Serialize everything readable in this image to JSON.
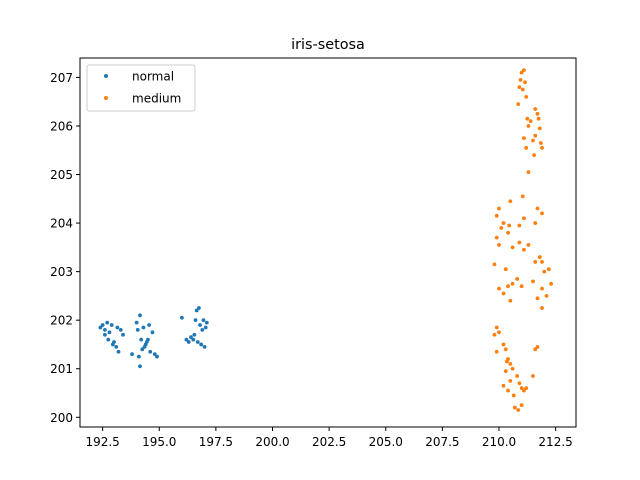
{
  "chart_data": {
    "type": "scatter",
    "title": "iris-setosa",
    "xlabel": "",
    "ylabel": "",
    "xlim": [
      191.5,
      213.4
    ],
    "ylim": [
      199.8,
      207.4
    ],
    "xticks": [
      192.5,
      195.0,
      197.5,
      200.0,
      202.5,
      205.0,
      207.5,
      210.0,
      212.5
    ],
    "xtick_labels": [
      "192.5",
      "195.0",
      "197.5",
      "200.0",
      "202.5",
      "205.0",
      "207.5",
      "210.0",
      "212.5"
    ],
    "yticks": [
      200,
      201,
      202,
      203,
      204,
      205,
      206,
      207
    ],
    "ytick_labels": [
      "200",
      "201",
      "202",
      "203",
      "204",
      "205",
      "206",
      "207"
    ],
    "grid": false,
    "legend_position": "top-left",
    "series": [
      {
        "name": "normal",
        "color": "#1f77b4",
        "points": [
          [
            192.4,
            201.85
          ],
          [
            192.5,
            201.9
          ],
          [
            192.6,
            201.8
          ],
          [
            192.7,
            201.95
          ],
          [
            192.6,
            201.7
          ],
          [
            192.8,
            201.75
          ],
          [
            192.9,
            201.9
          ],
          [
            192.75,
            201.6
          ],
          [
            193.0,
            201.55
          ],
          [
            193.1,
            201.45
          ],
          [
            193.2,
            201.35
          ],
          [
            193.3,
            201.8
          ],
          [
            193.15,
            201.85
          ],
          [
            192.95,
            201.5
          ],
          [
            193.4,
            201.7
          ],
          [
            193.8,
            201.3
          ],
          [
            194.0,
            201.95
          ],
          [
            194.05,
            201.8
          ],
          [
            194.15,
            202.1
          ],
          [
            194.2,
            201.6
          ],
          [
            194.3,
            201.85
          ],
          [
            194.25,
            201.4
          ],
          [
            194.1,
            201.25
          ],
          [
            194.15,
            201.05
          ],
          [
            194.4,
            201.5
          ],
          [
            194.5,
            201.6
          ],
          [
            194.55,
            201.9
          ],
          [
            194.6,
            201.35
          ],
          [
            194.7,
            201.75
          ],
          [
            194.8,
            201.3
          ],
          [
            194.9,
            201.25
          ],
          [
            194.45,
            201.55
          ],
          [
            194.35,
            201.45
          ],
          [
            196.0,
            202.05
          ],
          [
            196.2,
            201.6
          ],
          [
            196.3,
            201.55
          ],
          [
            196.4,
            201.65
          ],
          [
            196.5,
            201.6
          ],
          [
            196.6,
            202.0
          ],
          [
            196.65,
            202.2
          ],
          [
            196.75,
            202.25
          ],
          [
            196.8,
            201.9
          ],
          [
            196.85,
            201.5
          ],
          [
            196.9,
            201.8
          ],
          [
            196.95,
            202.0
          ],
          [
            196.7,
            201.55
          ],
          [
            197.0,
            201.45
          ],
          [
            197.1,
            201.95
          ],
          [
            197.05,
            201.85
          ],
          [
            196.55,
            201.7
          ]
        ]
      },
      {
        "name": "medium",
        "color": "#ff7f0e",
        "points": [
          [
            211.0,
            207.1
          ],
          [
            211.1,
            207.15
          ],
          [
            210.95,
            206.95
          ],
          [
            211.15,
            206.9
          ],
          [
            210.9,
            206.8
          ],
          [
            211.05,
            206.75
          ],
          [
            211.2,
            206.6
          ],
          [
            210.85,
            206.45
          ],
          [
            211.3,
            206.0
          ],
          [
            211.4,
            206.1
          ],
          [
            211.25,
            206.15
          ],
          [
            211.6,
            206.35
          ],
          [
            211.7,
            206.25
          ],
          [
            211.75,
            206.15
          ],
          [
            211.8,
            205.95
          ],
          [
            211.6,
            205.8
          ],
          [
            211.5,
            205.7
          ],
          [
            211.85,
            205.65
          ],
          [
            211.9,
            205.55
          ],
          [
            211.55,
            205.4
          ],
          [
            211.1,
            205.75
          ],
          [
            211.2,
            205.55
          ],
          [
            211.3,
            205.05
          ],
          [
            211.05,
            204.55
          ],
          [
            210.5,
            204.45
          ],
          [
            210.0,
            204.3
          ],
          [
            209.9,
            204.15
          ],
          [
            210.2,
            204.0
          ],
          [
            210.1,
            203.9
          ],
          [
            210.45,
            203.95
          ],
          [
            210.9,
            203.95
          ],
          [
            211.1,
            204.1
          ],
          [
            211.7,
            204.3
          ],
          [
            211.6,
            204.0
          ],
          [
            211.9,
            204.2
          ],
          [
            209.9,
            203.7
          ],
          [
            210.0,
            203.55
          ],
          [
            210.4,
            203.8
          ],
          [
            210.6,
            203.5
          ],
          [
            210.9,
            203.6
          ],
          [
            211.1,
            203.45
          ],
          [
            211.3,
            203.55
          ],
          [
            211.8,
            203.3
          ],
          [
            211.9,
            203.2
          ],
          [
            212.0,
            203.0
          ],
          [
            212.2,
            203.05
          ],
          [
            209.8,
            203.15
          ],
          [
            210.3,
            203.05
          ],
          [
            210.6,
            202.75
          ],
          [
            210.8,
            202.85
          ],
          [
            211.0,
            202.7
          ],
          [
            211.5,
            202.8
          ],
          [
            211.6,
            203.2
          ],
          [
            211.9,
            202.65
          ],
          [
            212.3,
            202.75
          ],
          [
            210.0,
            202.65
          ],
          [
            210.2,
            202.55
          ],
          [
            210.4,
            202.7
          ],
          [
            210.5,
            202.4
          ],
          [
            211.7,
            202.45
          ],
          [
            212.1,
            202.5
          ],
          [
            211.9,
            202.25
          ],
          [
            209.9,
            201.85
          ],
          [
            209.8,
            201.7
          ],
          [
            210.0,
            201.75
          ],
          [
            210.2,
            201.5
          ],
          [
            209.9,
            201.35
          ],
          [
            210.3,
            201.4
          ],
          [
            211.6,
            201.4
          ],
          [
            211.7,
            201.45
          ],
          [
            210.4,
            201.2
          ],
          [
            210.5,
            201.1
          ],
          [
            210.6,
            201.0
          ],
          [
            210.8,
            200.85
          ],
          [
            210.9,
            200.7
          ],
          [
            211.0,
            200.6
          ],
          [
            211.1,
            200.55
          ],
          [
            211.2,
            200.6
          ],
          [
            210.3,
            200.95
          ],
          [
            210.5,
            200.75
          ],
          [
            210.4,
            200.55
          ],
          [
            210.65,
            200.45
          ],
          [
            210.7,
            200.2
          ],
          [
            210.85,
            200.15
          ],
          [
            211.0,
            200.25
          ],
          [
            211.5,
            200.85
          ],
          [
            210.2,
            200.65
          ],
          [
            210.35,
            201.15
          ]
        ]
      }
    ]
  }
}
